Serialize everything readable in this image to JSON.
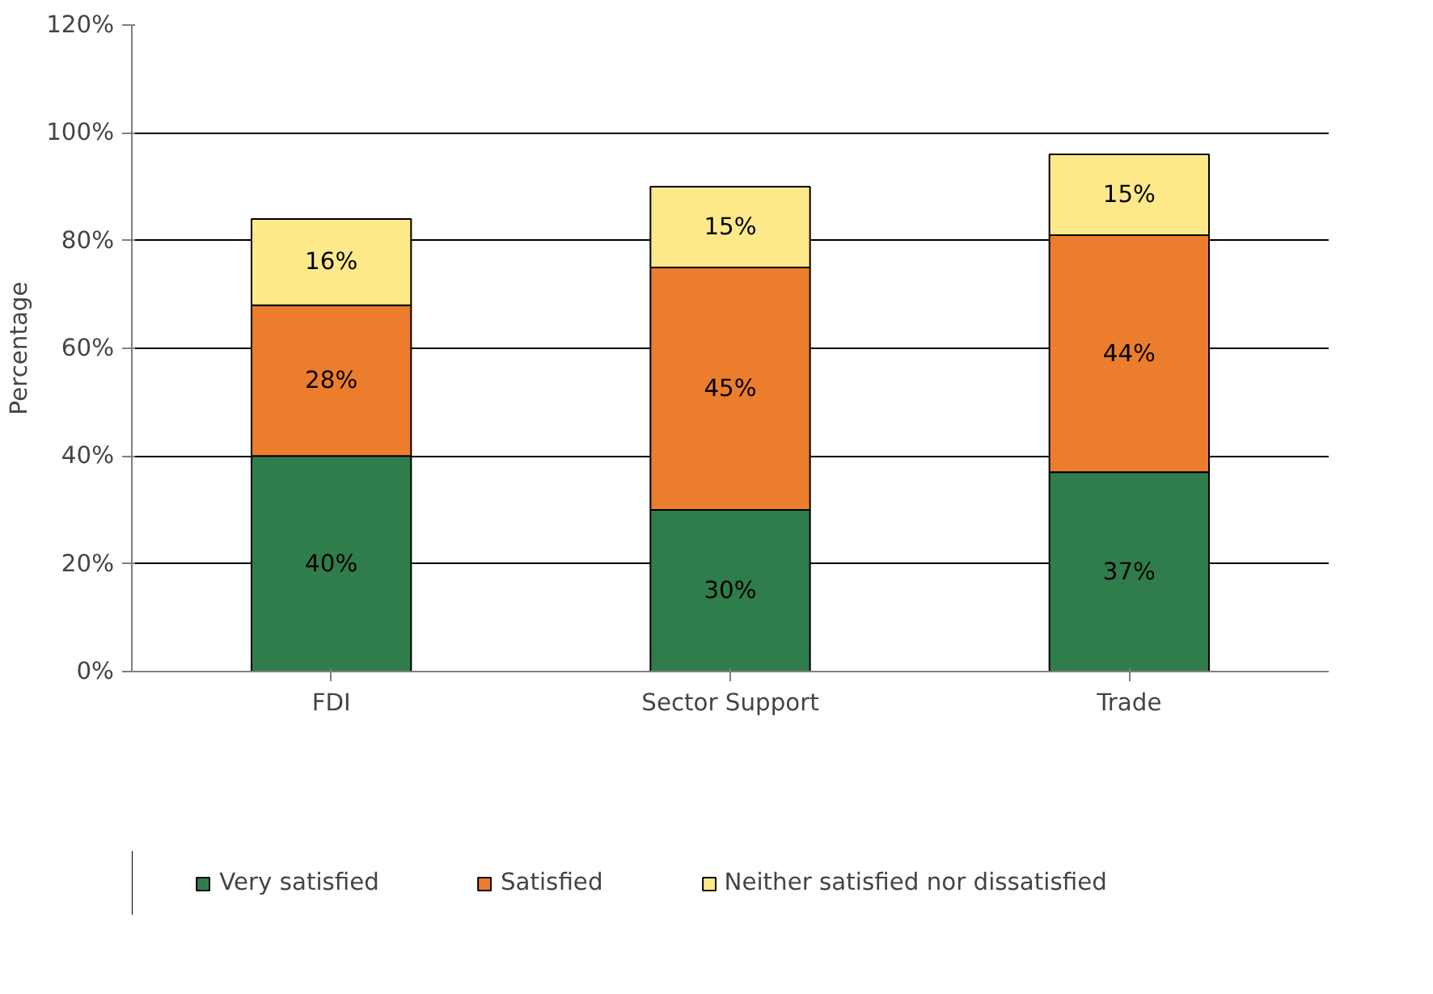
{
  "chart_data": {
    "type": "bar",
    "stacked": true,
    "ylabel": "Percentage",
    "categories": [
      "FDI",
      "Sector Support",
      "Trade"
    ],
    "series": [
      {
        "name": "Very satisfied",
        "color": "#2f7d4a",
        "values": [
          40,
          30,
          37
        ],
        "value_labels": [
          "40%",
          "30%",
          "37%"
        ]
      },
      {
        "name": "Satisfied",
        "color": "#ec7d2c",
        "values": [
          28,
          45,
          44
        ],
        "value_labels": [
          "28%",
          "45%",
          "44%"
        ]
      },
      {
        "name": "Neither satisfied nor dissatisfied",
        "color": "#fde98a",
        "values": [
          16,
          15,
          15
        ],
        "value_labels": [
          "16%",
          "15%",
          "15%"
        ]
      }
    ],
    "ylim": [
      0,
      120
    ],
    "yticks": [
      {
        "value": 0,
        "label": "0%"
      },
      {
        "value": 20,
        "label": "20%"
      },
      {
        "value": 40,
        "label": "40%"
      },
      {
        "value": 60,
        "label": "60%"
      },
      {
        "value": 80,
        "label": "80%"
      },
      {
        "value": 100,
        "label": "100%"
      },
      {
        "value": 120,
        "label": "120%"
      }
    ],
    "grid": "y",
    "legend": "bottom"
  }
}
